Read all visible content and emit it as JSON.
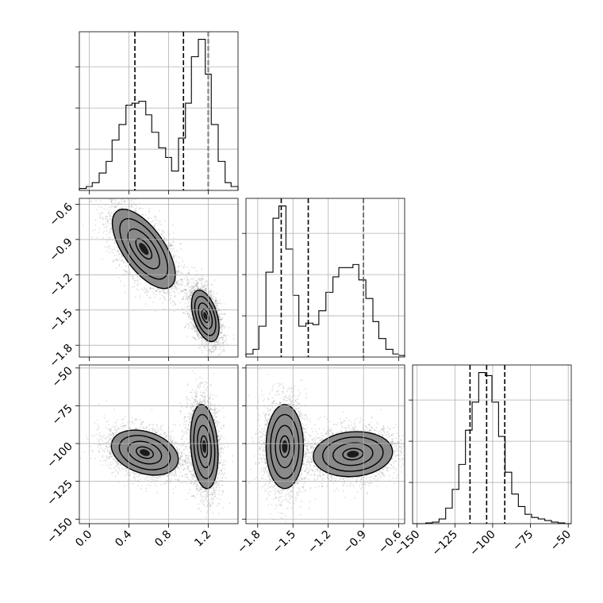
{
  "chart_data": {
    "type": "corner",
    "grid": true,
    "parameters": [
      {
        "ticks": [
          "0.0",
          "0.4",
          "0.8",
          "1.2"
        ],
        "tick_values": [
          0.0,
          0.4,
          0.8,
          1.2
        ],
        "range": [
          -0.1,
          1.5
        ],
        "quantiles": [
          0.46,
          0.95,
          1.2
        ],
        "histogram": {
          "edges": [
            -0.1,
            -0.03,
            0.03,
            0.1,
            0.17,
            0.23,
            0.3,
            0.37,
            0.43,
            0.5,
            0.57,
            0.63,
            0.7,
            0.77,
            0.83,
            0.9,
            0.97,
            1.03,
            1.1,
            1.17,
            1.23,
            1.3,
            1.37,
            1.43,
            1.5
          ],
          "counts": [
            1,
            2,
            4,
            9,
            15,
            26,
            34,
            44,
            45,
            46,
            39,
            30,
            22,
            17,
            10,
            27,
            45,
            69,
            78,
            60,
            34,
            15,
            4,
            2
          ]
        }
      },
      {
        "ticks": [
          "−1.8",
          "−1.5",
          "−1.2",
          "−0.9",
          "−0.6"
        ],
        "tick_values": [
          -1.8,
          -1.5,
          -1.2,
          -0.9,
          -0.6
        ],
        "range": [
          -1.9,
          -0.55
        ],
        "quantiles": [
          -1.6,
          -1.37,
          -0.9
        ],
        "histogram": {
          "edges": [
            -1.9,
            -1.84,
            -1.79,
            -1.73,
            -1.67,
            -1.62,
            -1.56,
            -1.5,
            -1.45,
            -1.39,
            -1.33,
            -1.28,
            -1.22,
            -1.16,
            -1.11,
            -1.05,
            -0.99,
            -0.94,
            -0.88,
            -0.82,
            -0.77,
            -0.71,
            -0.65,
            -0.6,
            -0.55
          ],
          "counts": [
            2,
            5,
            20,
            55,
            90,
            98,
            70,
            40,
            20,
            22,
            21,
            30,
            42,
            52,
            58,
            58,
            60,
            50,
            38,
            23,
            12,
            5,
            2,
            1
          ]
        }
      },
      {
        "ticks": [
          "−150",
          "−125",
          "−100",
          "−75",
          "−50"
        ],
        "tick_values": [
          -150,
          -125,
          -100,
          -75,
          -50
        ],
        "range": [
          -153,
          -48
        ],
        "quantiles": [
          -115,
          -104,
          -92
        ],
        "histogram": {
          "edges": [
            -153,
            -148.6,
            -144.25,
            -139.9,
            -135.5,
            -131.1,
            -126.75,
            -122.4,
            -118,
            -113.6,
            -109.25,
            -104.9,
            -100.5,
            -96.1,
            -91.75,
            -87.4,
            -83,
            -78.6,
            -74.25,
            -69.9,
            -65.5,
            -61.1,
            -56.75,
            -52.4,
            -48
          ],
          "counts": [
            0,
            0,
            0.5,
            1,
            3,
            10,
            22,
            38,
            60,
            78,
            97,
            95,
            78,
            56,
            33,
            19,
            11,
            6,
            4,
            3,
            2,
            1,
            0.5,
            0
          ]
        }
      }
    ],
    "pairs": [
      {
        "x_param": 0,
        "y_param": 1,
        "clusters": [
          {
            "cx": 0.55,
            "cy": -0.98,
            "sx": 0.16,
            "sy": 0.17,
            "rho": -0.65,
            "weight": 0.5
          },
          {
            "cx": 1.17,
            "cy": -1.55,
            "sx": 0.07,
            "sy": 0.11,
            "rho": -0.45,
            "weight": 0.5
          }
        ]
      },
      {
        "x_param": 0,
        "y_param": 2,
        "clusters": [
          {
            "cx": 0.56,
            "cy": -106,
            "sx": 0.17,
            "sy": 7.5,
            "rho": -0.3,
            "weight": 0.5
          },
          {
            "cx": 1.16,
            "cy": -102,
            "sx": 0.07,
            "sy": 14,
            "rho": -0.2,
            "weight": 0.5
          }
        ]
      },
      {
        "x_param": 1,
        "y_param": 2,
        "clusters": [
          {
            "cx": -1.57,
            "cy": -102,
            "sx": 0.08,
            "sy": 14,
            "rho": 0.0,
            "weight": 0.5
          },
          {
            "cx": -0.99,
            "cy": -107,
            "sx": 0.17,
            "sy": 7.5,
            "rho": 0.1,
            "weight": 0.5
          }
        ]
      }
    ]
  }
}
